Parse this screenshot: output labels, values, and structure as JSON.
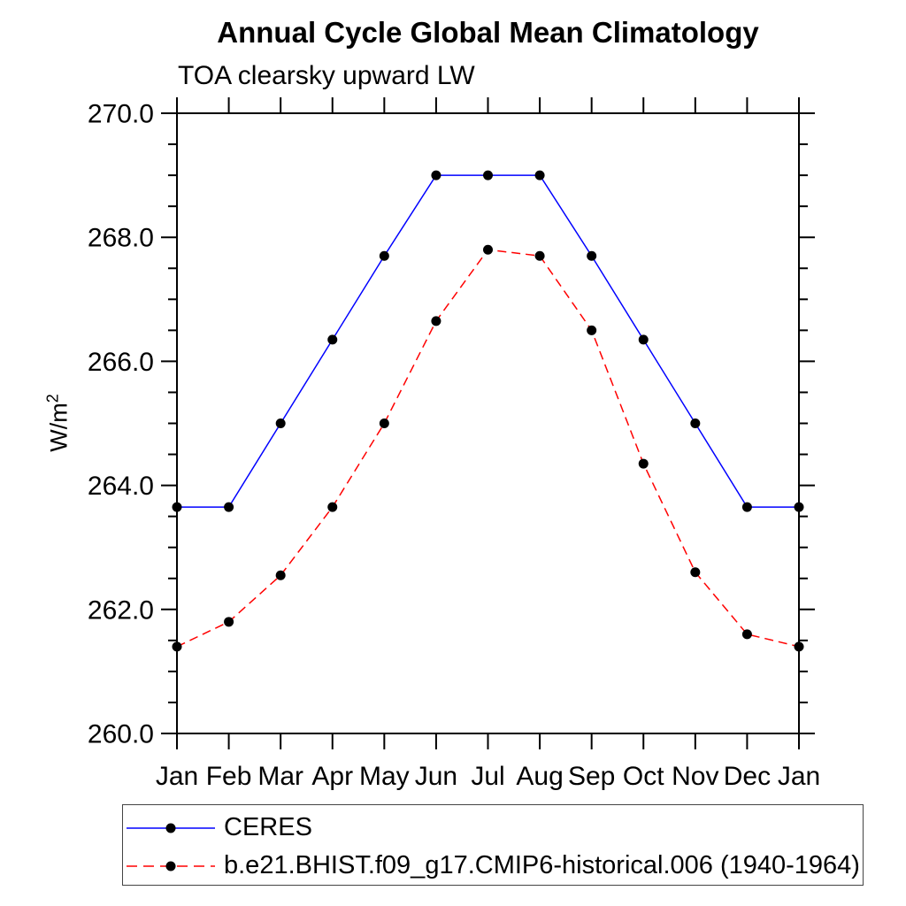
{
  "page": {
    "background": "#ffffff"
  },
  "chart_data": {
    "type": "line",
    "title": "Annual Cycle Global Mean Climatology",
    "subtitle": "TOA clearsky upward LW",
    "ylabel_base": "W/m",
    "ylabel_exponent": "2",
    "categories": [
      "Jan",
      "Feb",
      "Mar",
      "Apr",
      "May",
      "Jun",
      "Jul",
      "Aug",
      "Sep",
      "Oct",
      "Nov",
      "Dec",
      "Jan"
    ],
    "ylim": [
      260.0,
      270.0
    ],
    "ytick_major_step": 2.0,
    "ytick_minor_step": 0.5,
    "ytick_labels": [
      "260.0",
      "262.0",
      "264.0",
      "266.0",
      "268.0",
      "270.0"
    ],
    "grid": false,
    "legend_position": "bottom-left",
    "axis_color": "#000000",
    "text_color": "#000000",
    "series": [
      {
        "name": "CERES",
        "line_color": "#0000ff",
        "line_style": "solid",
        "marker": "filled-circle",
        "marker_color": "#000000",
        "values": [
          263.65,
          263.65,
          265.0,
          266.35,
          267.7,
          269.0,
          269.0,
          269.0,
          267.7,
          266.35,
          265.0,
          263.65,
          263.65
        ]
      },
      {
        "name": "b.e21.BHIST.f09_g17.CMIP6-historical.006 (1940-1964)",
        "line_color": "#ff0000",
        "line_style": "dashed",
        "marker": "filled-circle",
        "marker_color": "#000000",
        "values": [
          261.4,
          261.8,
          262.55,
          263.65,
          265.0,
          266.65,
          267.8,
          267.7,
          266.5,
          264.35,
          262.6,
          261.6,
          261.4
        ]
      }
    ]
  }
}
